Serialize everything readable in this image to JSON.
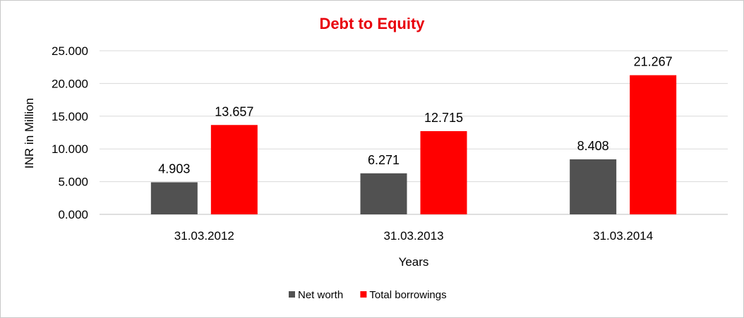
{
  "chart_data": {
    "type": "bar",
    "title": "Debt to Equity",
    "xlabel": "Years",
    "ylabel": "INR in Million",
    "categories": [
      "31.03.2012",
      "31.03.2013",
      "31.03.2014"
    ],
    "series": [
      {
        "name": "Net worth",
        "values": [
          4.903,
          6.271,
          8.408
        ],
        "labels": [
          "4.903",
          "6.271",
          "8.408"
        ],
        "color": "#515151"
      },
      {
        "name": "Total borrowings",
        "values": [
          13.657,
          12.715,
          21.267
        ],
        "labels": [
          "13.657",
          "12.715",
          "21.267"
        ],
        "color": "#ff0000"
      }
    ],
    "ylim": [
      0,
      25
    ],
    "yticks": [
      0,
      5,
      10,
      15,
      20,
      25
    ],
    "ytick_labels": [
      "0.000",
      "5.000",
      "10.000",
      "15.000",
      "20.000",
      "25.000"
    ],
    "grid": true,
    "legend_position": "bottom",
    "title_color": "#e8000b"
  }
}
